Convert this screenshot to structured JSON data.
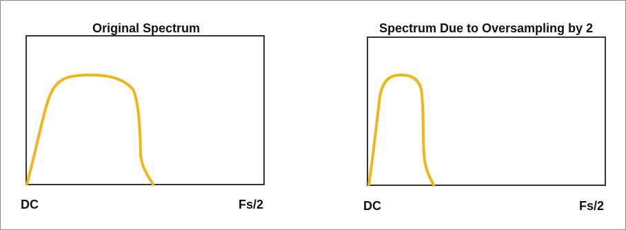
{
  "colors": {
    "curve": "#F2B418",
    "axes": "#333333",
    "text": "#111111"
  },
  "panels": [
    {
      "title": "Original Spectrum",
      "x_start_label": "DC",
      "x_end_label": "Fs/2",
      "spectrum_extent_fraction": 0.53
    },
    {
      "title": "Spectrum Due to Oversampling by 2",
      "x_start_label": "DC",
      "x_end_label": "Fs/2",
      "spectrum_extent_fraction": 0.27
    }
  ]
}
